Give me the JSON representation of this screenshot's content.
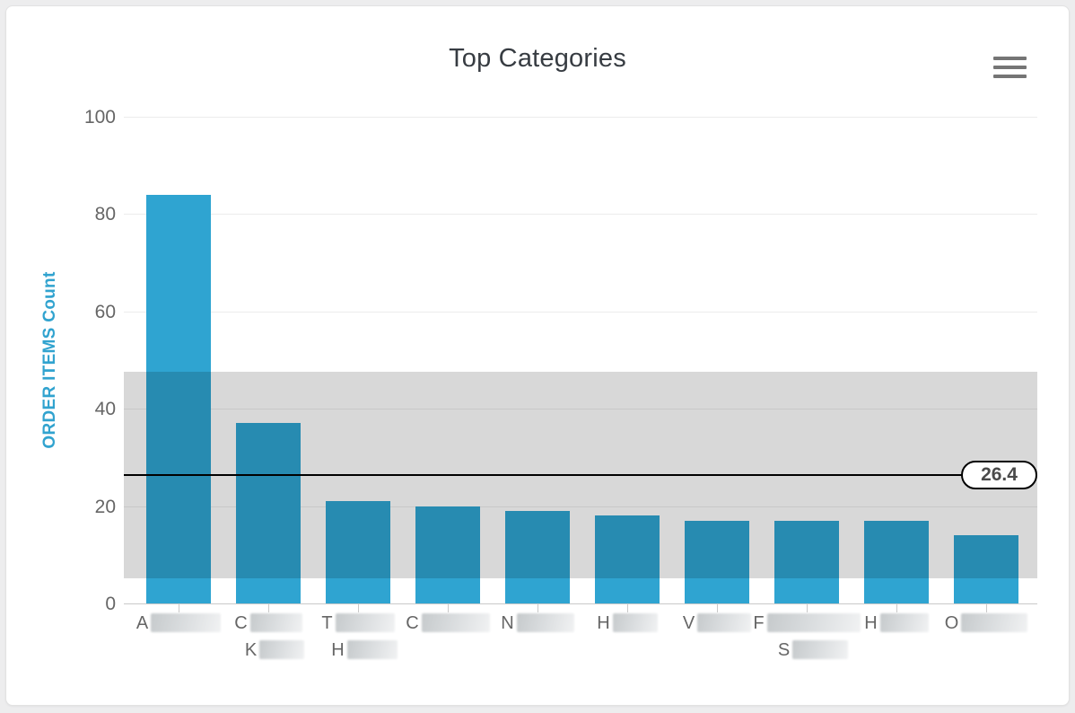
{
  "card": {
    "title": "Top Categories",
    "menu_icon": "hamburger-menu-icon"
  },
  "chart_data": {
    "type": "bar",
    "title": "Top Categories",
    "xlabel": "",
    "ylabel": "ORDER ITEMS Count",
    "ylim": [
      0,
      100
    ],
    "yticks": [
      0,
      20,
      40,
      60,
      80,
      100
    ],
    "grid": "on",
    "legend": "none",
    "categories": [
      {
        "lines": [
          {
            "letter": "A",
            "blur_width": 78
          }
        ]
      },
      {
        "lines": [
          {
            "letter": "C",
            "blur_width": 58
          },
          {
            "letter": "K",
            "blur_width": 50
          }
        ]
      },
      {
        "lines": [
          {
            "letter": "T",
            "blur_width": 66
          },
          {
            "letter": "H",
            "blur_width": 56
          }
        ]
      },
      {
        "lines": [
          {
            "letter": "C",
            "blur_width": 76
          }
        ]
      },
      {
        "lines": [
          {
            "letter": "N",
            "blur_width": 64
          }
        ]
      },
      {
        "lines": [
          {
            "letter": "H",
            "blur_width": 50
          }
        ]
      },
      {
        "lines": [
          {
            "letter": "V",
            "blur_width": 60
          }
        ]
      },
      {
        "lines": [
          {
            "letter": "F",
            "blur_width": 104
          },
          {
            "letter": "S",
            "blur_width": 62
          }
        ]
      },
      {
        "lines": [
          {
            "letter": "H",
            "blur_width": 54
          }
        ]
      },
      {
        "lines": [
          {
            "letter": "O",
            "blur_width": 74
          }
        ]
      }
    ],
    "values": [
      84,
      37,
      21,
      20,
      19,
      18,
      17,
      17,
      17,
      14
    ],
    "mean_line": {
      "value": 26.4,
      "label": "26.4"
    },
    "band": {
      "from": 5.2,
      "to": 47.6
    },
    "colors": {
      "bar": "#2fa4d1",
      "band_overlay": "rgba(0,0,0,0.152)",
      "mean_line": "#000000",
      "axis_title": "#31a3cf",
      "tick_label": "#666666",
      "title_text": "#373c42",
      "gridline": "#ececec"
    }
  }
}
